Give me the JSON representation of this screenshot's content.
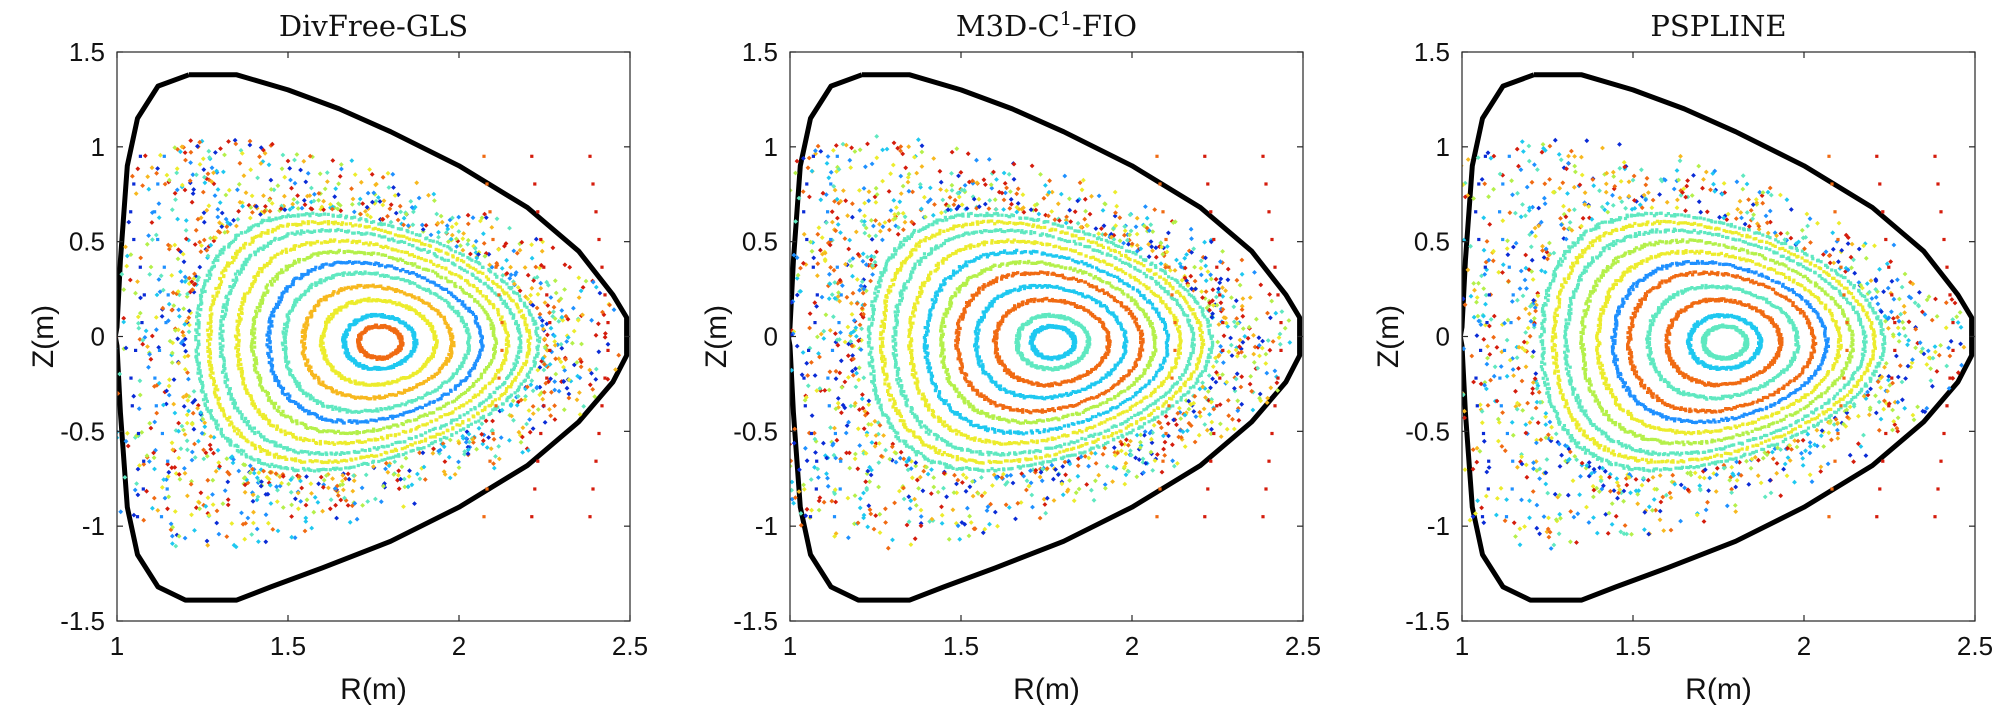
{
  "chart_data": [
    {
      "type": "scatter",
      "title": "DivFree-GLS",
      "xlabel": "R(m)",
      "ylabel": "Z(m)",
      "xlim": [
        1,
        2.5
      ],
      "ylim": [
        -1.5,
        1.5
      ],
      "xticks": [
        1,
        1.5,
        2,
        2.5
      ],
      "xtick_labels": [
        "1",
        "1.5",
        "2",
        "2.5"
      ],
      "yticks": [
        1.5,
        1,
        0.5,
        0,
        -0.5,
        -1,
        -1.5
      ],
      "ytick_labels": [
        "1.5",
        "1",
        "0.5",
        "0",
        "-0.5",
        "-1",
        "-1.5"
      ],
      "boundary": {
        "description": "wall contour",
        "color": "#000000"
      },
      "magnetic_axis": [
        1.77,
        -0.03
      ],
      "series": [
        {
          "name": "surfaces",
          "colormap": "jet",
          "kind": "Poincaré points"
        }
      ]
    },
    {
      "type": "scatter",
      "title": "M3D-C¹-FIO",
      "title_base": "M3D-C",
      "title_sup": "1",
      "title_suffix": "-FIO",
      "xlabel": "R(m)",
      "ylabel": "Z(m)",
      "xlim": [
        1,
        2.5
      ],
      "ylim": [
        -1.5,
        1.5
      ],
      "xticks": [
        1,
        1.5,
        2,
        2.5
      ],
      "xtick_labels": [
        "1",
        "1.5",
        "2",
        "2.5"
      ],
      "yticks": [
        1.5,
        1,
        0.5,
        0,
        -0.5,
        -1,
        -1.5
      ],
      "ytick_labels": [
        "1.5",
        "1",
        "0.5",
        "0",
        "-0.5",
        "-1",
        "-1.5"
      ],
      "boundary": {
        "description": "wall contour",
        "color": "#000000"
      },
      "magnetic_axis": [
        1.77,
        -0.03
      ],
      "series": [
        {
          "name": "surfaces",
          "colormap": "jet",
          "kind": "Poincaré points"
        }
      ]
    },
    {
      "type": "scatter",
      "title": "PSPLINE",
      "xlabel": "R(m)",
      "ylabel": "Z(m)",
      "xlim": [
        1,
        2.5
      ],
      "ylim": [
        -1.5,
        1.5
      ],
      "xticks": [
        1,
        1.5,
        2,
        2.5
      ],
      "xtick_labels": [
        "1",
        "1.5",
        "2",
        "2.5"
      ],
      "yticks": [
        1.5,
        1,
        0.5,
        0,
        -0.5,
        -1,
        -1.5
      ],
      "ytick_labels": [
        "1.5",
        "1",
        "0.5",
        "0",
        "-0.5",
        "-1",
        "-1.5"
      ],
      "boundary": {
        "description": "wall contour",
        "color": "#000000"
      },
      "magnetic_axis": [
        1.77,
        -0.03
      ],
      "series": [
        {
          "name": "surfaces",
          "colormap": "jet",
          "kind": "Poincaré points"
        }
      ]
    }
  ],
  "wall_contour_RZ": [
    [
      1.21,
      1.38
    ],
    [
      1.35,
      1.38
    ],
    [
      1.5,
      1.3
    ],
    [
      1.65,
      1.2
    ],
    [
      1.8,
      1.08
    ],
    [
      2.0,
      0.9
    ],
    [
      2.2,
      0.68
    ],
    [
      2.35,
      0.45
    ],
    [
      2.45,
      0.22
    ],
    [
      2.49,
      0.1
    ],
    [
      2.49,
      -0.1
    ],
    [
      2.45,
      -0.24
    ],
    [
      2.35,
      -0.45
    ],
    [
      2.2,
      -0.68
    ],
    [
      2.0,
      -0.9
    ],
    [
      1.8,
      -1.08
    ],
    [
      1.6,
      -1.22
    ],
    [
      1.45,
      -1.32
    ],
    [
      1.35,
      -1.39
    ],
    [
      1.2,
      -1.39
    ],
    [
      1.12,
      -1.32
    ],
    [
      1.06,
      -1.15
    ],
    [
      1.03,
      -0.9
    ],
    [
      1.01,
      -0.4
    ],
    [
      1.0,
      -0.05
    ],
    [
      0.995,
      0.0
    ],
    [
      1.0,
      0.05
    ],
    [
      1.01,
      0.4
    ],
    [
      1.03,
      0.9
    ],
    [
      1.06,
      1.15
    ],
    [
      1.12,
      1.32
    ],
    [
      1.21,
      1.38
    ]
  ],
  "surface_colors": [
    "#0a2bd6",
    "#1e90ff",
    "#1ec8f0",
    "#5fe8c0",
    "#b4f04a",
    "#ecec2c",
    "#f7b81e",
    "#f06a12",
    "#d41c0c"
  ],
  "panel_variants": [
    {
      "chaos_level": 0.95,
      "ring_palette": [
        "#f06a12",
        "#1ec8f0",
        "#ecec2c",
        "#f7b81e",
        "#5fe8c0",
        "#1e90ff",
        "#b4f04a",
        "#ecec2c",
        "#5fe8c0",
        "#ecec2c",
        "#5fe8c0"
      ]
    },
    {
      "chaos_level": 1.0,
      "ring_palette": [
        "#1ec8f0",
        "#5fe8c0",
        "#f06a12",
        "#1ec8f0",
        "#f06a12",
        "#b4f04a",
        "#1ec8f0",
        "#ecec2c",
        "#5fe8c0",
        "#ecec2c",
        "#5fe8c0"
      ]
    },
    {
      "chaos_level": 0.8,
      "ring_palette": [
        "#5fe8c0",
        "#1ec8f0",
        "#f06a12",
        "#5fe8c0",
        "#f06a12",
        "#1e90ff",
        "#ecec2c",
        "#b4f04a",
        "#5fe8c0",
        "#ecec2c",
        "#5fe8c0"
      ]
    }
  ]
}
